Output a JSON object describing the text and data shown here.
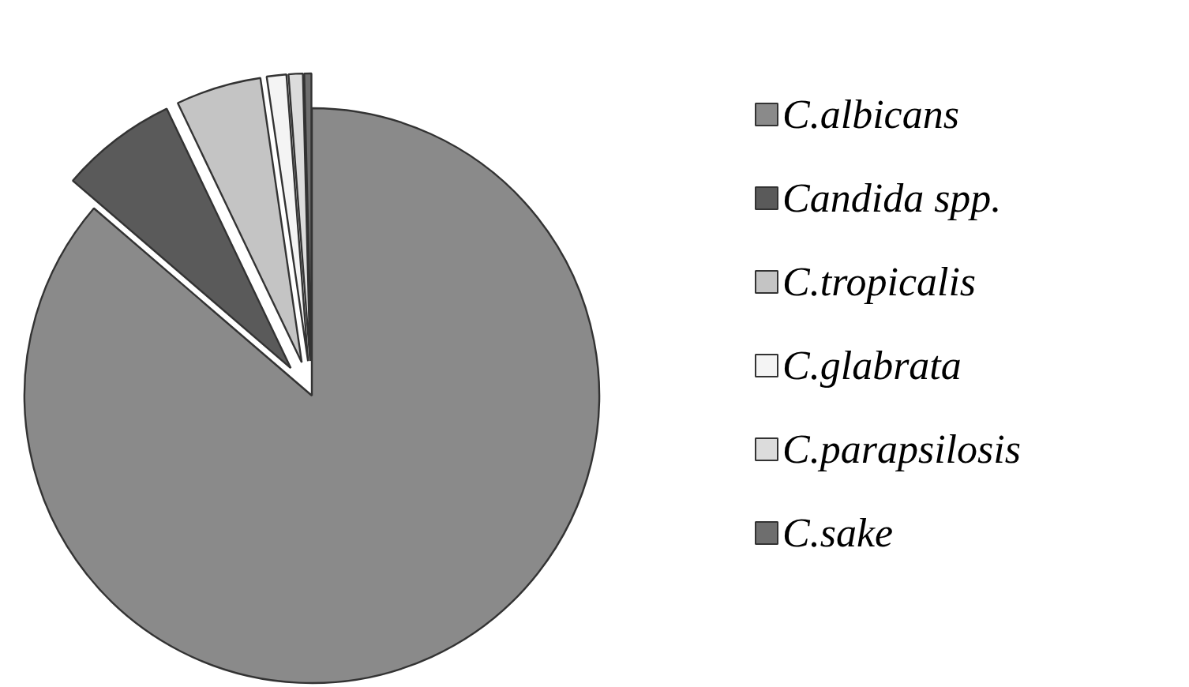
{
  "chart_data": {
    "type": "pie",
    "categories": [
      "C.albicans",
      "Candida spp.",
      "C.tropicalis",
      "C.glabrata",
      "C.parapsilosis",
      "C.sake"
    ],
    "values": [
      86.3,
      6.6,
      4.8,
      1.1,
      0.8,
      0.4
    ],
    "colors": [
      "#8a8a8a",
      "#5a5a5a",
      "#c4c4c4",
      "#f4f4f4",
      "#dcdcdc",
      "#6e6e6e"
    ],
    "legend": "right"
  }
}
